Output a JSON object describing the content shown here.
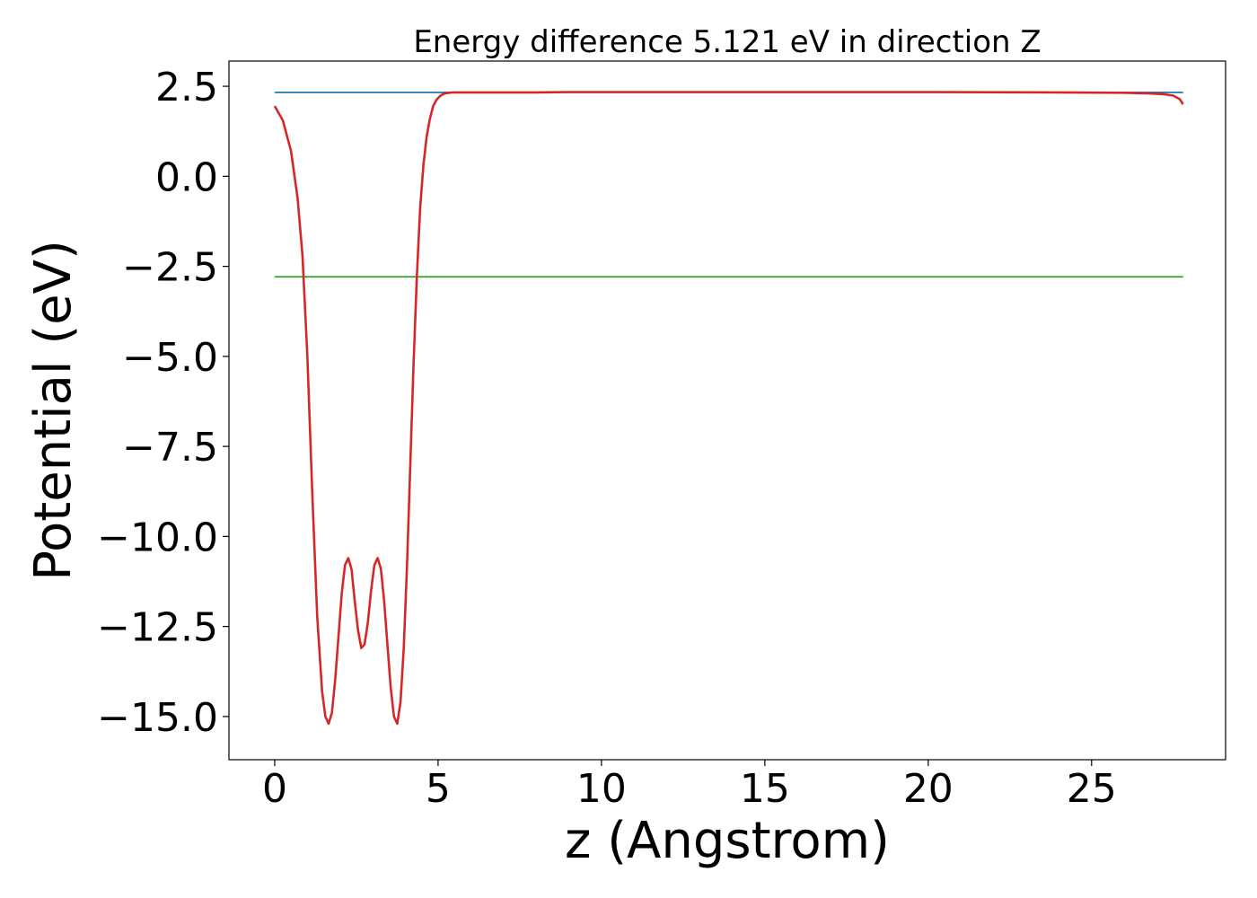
{
  "chart_data": {
    "type": "line",
    "title": "Energy difference 5.121 eV in direction Z",
    "xlabel": "z (Angstrom)",
    "ylabel": "Potential (eV)",
    "xlim": [
      -1.4,
      29.1
    ],
    "ylim": [
      -16.2,
      3.2
    ],
    "xticks": [
      0,
      5,
      10,
      15,
      20,
      25
    ],
    "xtick_labels": [
      "0",
      "5",
      "10",
      "15",
      "20",
      "25"
    ],
    "yticks": [
      2.5,
      0.0,
      -2.5,
      -5.0,
      -7.5,
      -10.0,
      -12.5,
      -15.0
    ],
    "ytick_labels": [
      "2.5",
      "0.0",
      "−2.5",
      "−5.0",
      "−7.5",
      "−10.0",
      "−12.5",
      "−15.0"
    ],
    "grid": false,
    "legend": false,
    "series": [
      {
        "kind": "line",
        "color": "#1f77b4",
        "x": [
          0,
          27.8
        ],
        "y": [
          2.33,
          2.33
        ]
      },
      {
        "kind": "line",
        "color": "#2ca02c",
        "x": [
          0,
          27.8
        ],
        "y": [
          -2.79,
          -2.79
        ]
      },
      {
        "kind": "line",
        "color": "#d62728",
        "x": [
          0,
          0.25,
          0.5,
          0.7,
          0.85,
          1.0,
          1.15,
          1.3,
          1.45,
          1.55,
          1.65,
          1.75,
          1.85,
          1.95,
          2.05,
          2.15,
          2.25,
          2.35,
          2.45,
          2.55,
          2.65,
          2.75,
          2.85,
          2.95,
          3.05,
          3.15,
          3.25,
          3.35,
          3.45,
          3.55,
          3.65,
          3.75,
          3.85,
          3.95,
          4.05,
          4.15,
          4.25,
          4.35,
          4.45,
          4.55,
          4.65,
          4.75,
          4.85,
          4.95,
          5.05,
          5.15,
          5.25,
          5.35,
          5.45,
          5.6,
          5.75,
          5.9,
          6.1,
          6.3,
          6.5,
          6.8,
          7.1,
          7.5,
          8.0,
          9,
          12,
          16,
          20,
          24,
          26,
          26.8,
          27.2,
          27.5,
          27.7,
          27.8
        ],
        "y": [
          1.95,
          1.55,
          0.7,
          -0.6,
          -2.2,
          -5.0,
          -8.8,
          -12.2,
          -14.3,
          -15.0,
          -15.2,
          -14.9,
          -14.0,
          -12.8,
          -11.6,
          -10.8,
          -10.6,
          -10.9,
          -11.8,
          -12.6,
          -13.1,
          -13.0,
          -12.4,
          -11.5,
          -10.8,
          -10.6,
          -10.9,
          -11.8,
          -13.0,
          -14.2,
          -15.0,
          -15.2,
          -14.6,
          -13.1,
          -10.8,
          -8.0,
          -5.2,
          -2.8,
          -0.9,
          0.3,
          1.1,
          1.6,
          1.95,
          2.12,
          2.22,
          2.28,
          2.31,
          2.32,
          2.33,
          2.33,
          2.33,
          2.33,
          2.33,
          2.33,
          2.33,
          2.33,
          2.33,
          2.33,
          2.33,
          2.34,
          2.34,
          2.34,
          2.34,
          2.33,
          2.32,
          2.3,
          2.28,
          2.24,
          2.14,
          2.0
        ]
      }
    ]
  }
}
